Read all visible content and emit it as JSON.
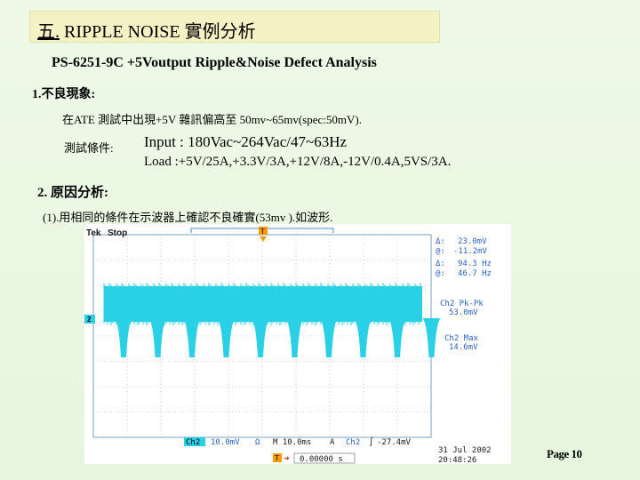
{
  "slide": {
    "title_num": "五.",
    "title_text": "RIPPLE NOISE 實例分析",
    "subtitle": "PS-6251-9C +5Voutput Ripple&Noise Defect Analysis",
    "section1_heading": "1.不良現象:",
    "section1_text": "在ATE 測試中出現+5V 雜訊偏高至 50mv~65mv(spec:50mV).",
    "conditions_label": "測試條件:",
    "conditions_input": "Input : 180Vac~264Vac/47~63Hz",
    "conditions_load": "Load :+5V/25A,+3.3V/3A,+12V/8A,-12V/0.4A,5VS/3A.",
    "section2_heading": "2. 原因分析:",
    "section2_text": "(1).用相同的條件在示波器上確認不良確實(53mv ).如波形.",
    "page_number": "Page 10"
  },
  "scope": {
    "brand": "Tek",
    "state": "Stop",
    "delta_label": "Δ:",
    "delta_value": "23.0mV",
    "at_label": "@:",
    "at_value": "-11.2mV",
    "freq_delta_label": "Δ:",
    "freq_delta_value": "94.3 Hz",
    "freq_at_label": "@:",
    "freq_at_value": "46.7 Hz",
    "pkpk_label": "Ch2 Pk-Pk",
    "pkpk_value": "53.0mV",
    "max_label": "Ch2 Max",
    "max_value": "14.6mV",
    "ch_badge": "Ch2",
    "ch_scale": "10.0mV",
    "ch_coupling": "Ω",
    "timebase": "M 10.0ms",
    "trig_symbol": "A",
    "trig_ch": "Ch2",
    "trig_level": "-27.4mV",
    "ch_marker": "2",
    "trig_pos_marker": "T",
    "trig_pos_value": "0.00000 s",
    "date": "31 Jul 2002",
    "time": "20:48:26",
    "colors": {
      "trace": "#2ad0e6",
      "grid": "#6a9ab8",
      "text": "#2a63c8",
      "accent": "#ff9900"
    }
  }
}
